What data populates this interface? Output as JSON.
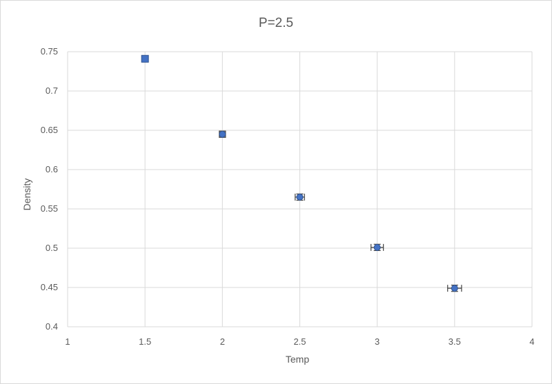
{
  "chart_data": {
    "type": "scatter",
    "title": "P=2.5",
    "xlabel": "Temp",
    "ylabel": "Density",
    "xlim": [
      1,
      4
    ],
    "ylim": [
      0.4,
      0.75
    ],
    "x_ticks": [
      "1",
      "1.5",
      "2",
      "2.5",
      "3",
      "3.5",
      "4"
    ],
    "y_ticks": [
      "0.4",
      "0.45",
      "0.5",
      "0.55",
      "0.6",
      "0.65",
      "0.7",
      "0.75"
    ],
    "grid": true,
    "series": [
      {
        "color": "#4472c4",
        "x": [
          1.5,
          2.0,
          2.5,
          3.0,
          3.5
        ],
        "y": [
          0.741,
          0.645,
          0.565,
          0.501,
          0.449
        ],
        "x_err": [
          0.0,
          0.02,
          0.03,
          0.04,
          0.045
        ],
        "y_err": [
          0.0,
          0.004,
          0.004,
          0.004,
          0.004
        ],
        "markers": [
          "square",
          "circle",
          "circle",
          "circle",
          "circle"
        ]
      }
    ]
  }
}
